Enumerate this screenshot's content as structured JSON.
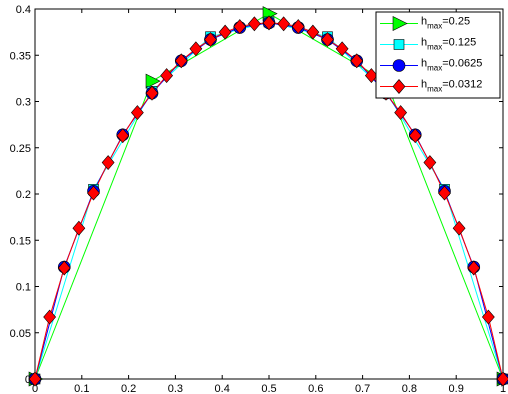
{
  "chart_data": {
    "type": "line",
    "title": "",
    "xlabel": "",
    "ylabel": "",
    "xlim": [
      0,
      1
    ],
    "ylim": [
      0,
      0.4
    ],
    "grid": false,
    "legend_position": "top-right",
    "x_ticks": [
      "0",
      "0.1",
      "0.2",
      "0.3",
      "0.4",
      "0.5",
      "0.6",
      "0.7",
      "0.8",
      "0.9",
      "1"
    ],
    "y_ticks": [
      "0",
      "0.05",
      "0.1",
      "0.15",
      "0.2",
      "0.25",
      "0.3",
      "0.35",
      "0.4"
    ],
    "series": [
      {
        "name": "h_max=0.25",
        "legend": {
          "base": "h",
          "sub": "max",
          "rest": "=0.25"
        },
        "color": "#00ff00",
        "marker": "triangle-right",
        "x": [
          0,
          0.25,
          0.5,
          0.75,
          1
        ],
        "y": [
          0,
          0.322,
          0.395,
          0.322,
          0
        ]
      },
      {
        "name": "h_max=0.125",
        "legend": {
          "base": "h",
          "sub": "max",
          "rest": "=0.125"
        },
        "color": "#00ffff",
        "marker": "square",
        "x": [
          0,
          0.125,
          0.25,
          0.375,
          0.5,
          0.625,
          0.75,
          0.875,
          1
        ],
        "y": [
          0,
          0.205,
          0.311,
          0.37,
          0.386,
          0.37,
          0.311,
          0.205,
          0
        ]
      },
      {
        "name": "h_max=0.0625",
        "legend": {
          "base": "h",
          "sub": "max",
          "rest": "=0.0625"
        },
        "color": "#0000ff",
        "marker": "circle",
        "x": [
          0,
          0.0625,
          0.125,
          0.1875,
          0.25,
          0.3125,
          0.375,
          0.4375,
          0.5,
          0.5625,
          0.625,
          0.6875,
          0.75,
          0.8125,
          0.875,
          0.9375,
          1
        ],
        "y": [
          0,
          0.121,
          0.203,
          0.264,
          0.309,
          0.344,
          0.367,
          0.38,
          0.385,
          0.38,
          0.367,
          0.344,
          0.309,
          0.264,
          0.203,
          0.121,
          0
        ]
      },
      {
        "name": "h_max=0.0312",
        "legend": {
          "base": "h",
          "sub": "max",
          "rest": "=0.0312"
        },
        "color": "#ff0000",
        "marker": "diamond",
        "x": [
          0,
          0.03125,
          0.0625,
          0.09375,
          0.125,
          0.15625,
          0.1875,
          0.21875,
          0.25,
          0.28125,
          0.3125,
          0.34375,
          0.375,
          0.40625,
          0.4375,
          0.46875,
          0.5,
          0.53125,
          0.5625,
          0.59375,
          0.625,
          0.65625,
          0.6875,
          0.71875,
          0.75,
          0.78125,
          0.8125,
          0.84375,
          0.875,
          0.90625,
          0.9375,
          0.96875,
          1
        ],
        "y": [
          0,
          0.067,
          0.12,
          0.163,
          0.201,
          0.234,
          0.263,
          0.288,
          0.309,
          0.328,
          0.344,
          0.357,
          0.367,
          0.375,
          0.381,
          0.384,
          0.385,
          0.384,
          0.381,
          0.375,
          0.367,
          0.357,
          0.344,
          0.328,
          0.309,
          0.288,
          0.263,
          0.234,
          0.201,
          0.163,
          0.12,
          0.067,
          0
        ]
      }
    ]
  }
}
